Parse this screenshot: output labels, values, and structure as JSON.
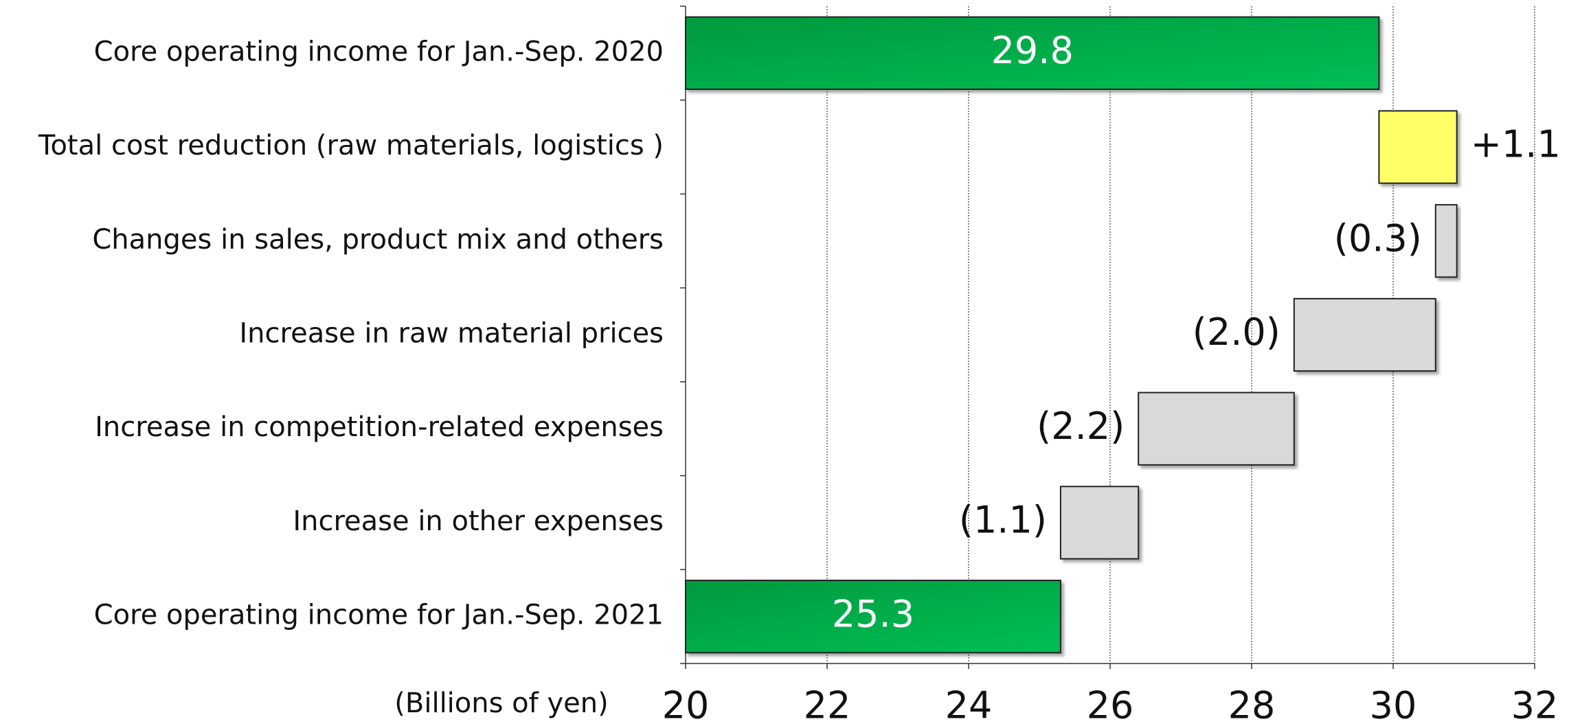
{
  "chart_data": {
    "type": "waterfall",
    "categories": [
      "Core operating income for Jan.-Sep. 2020",
      "Total cost reduction (raw materials, logistics )",
      "Changes in sales, product mix and others",
      "Increase in raw material prices",
      "Increase in competition-related expenses",
      "Increase in other expenses",
      "Core operating income for Jan.-Sep. 2021"
    ],
    "values": [
      29.8,
      1.1,
      -0.3,
      -2.0,
      -2.2,
      -1.1,
      25.3
    ],
    "value_labels": [
      "29.8",
      "+1.1",
      "(0.3)",
      "(2.0)",
      "(2.2)",
      "(1.1)",
      "25.3"
    ],
    "colors": [
      "#00a844",
      "#ffff66",
      "#d9d9d9",
      "#d9d9d9",
      "#d9d9d9",
      "#d9d9d9",
      "#00a844"
    ],
    "xlabel": "(Billions of yen)",
    "xlim": [
      20,
      32
    ],
    "xticks": [
      20,
      22,
      24,
      26,
      28,
      30,
      32
    ],
    "grid": true
  }
}
